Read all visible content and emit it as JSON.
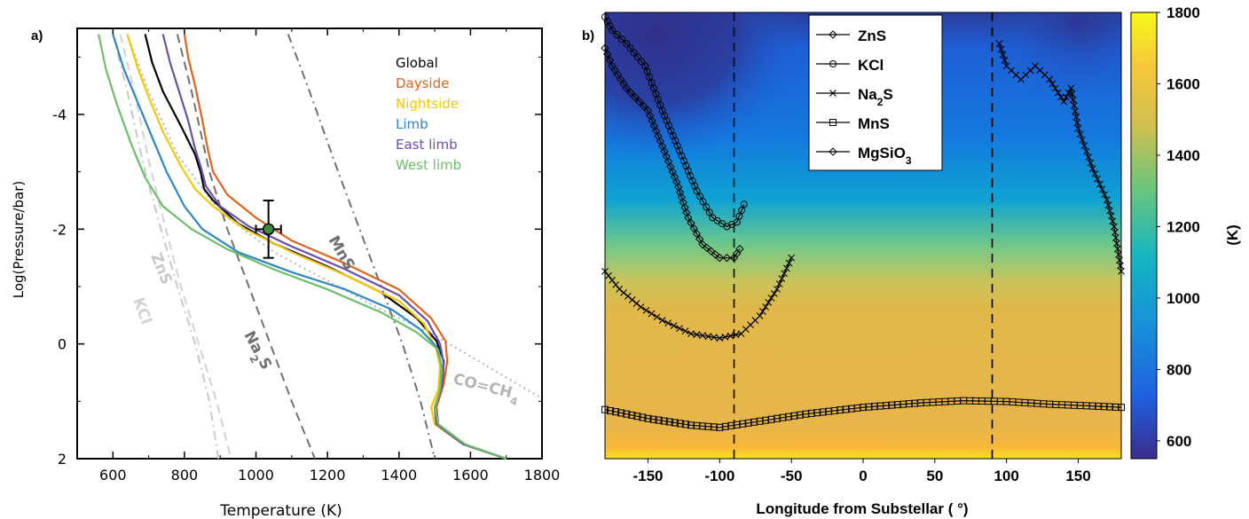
{
  "chart_data": [
    {
      "panel_label": "a)",
      "type": "line",
      "xlabel": "Temperature (K)",
      "ylabel": "Log(Pressure/bar)",
      "xlim": [
        500,
        1800
      ],
      "ylim": [
        2,
        -5.5
      ],
      "xticks": [
        600,
        800,
        1000,
        1200,
        1400,
        1600,
        1800
      ],
      "yticks": [
        -4,
        -2,
        0,
        2
      ],
      "ytick_labels": [
        "-4",
        "-2",
        "0",
        "2"
      ],
      "grid": false,
      "legend_position": "top-right",
      "series": [
        {
          "name": "Global",
          "color": "#000000",
          "points": [
            [
              690,
              -5.4
            ],
            [
              710,
              -4.9
            ],
            [
              740,
              -4.4
            ],
            [
              790,
              -3.8
            ],
            [
              830,
              -3.3
            ],
            [
              845,
              -3.0
            ],
            [
              855,
              -2.7
            ],
            [
              880,
              -2.5
            ],
            [
              950,
              -2.1
            ],
            [
              1050,
              -1.75
            ],
            [
              1200,
              -1.35
            ],
            [
              1350,
              -0.9
            ],
            [
              1450,
              -0.45
            ],
            [
              1505,
              -0.05
            ],
            [
              1525,
              0.3
            ],
            [
              1522,
              0.7
            ],
            [
              1500,
              1.1
            ],
            [
              1505,
              1.4
            ],
            [
              1580,
              1.75
            ],
            [
              1700,
              2.0
            ]
          ]
        },
        {
          "name": "Dayside",
          "color": "#e2631c",
          "points": [
            [
              800,
              -5.4
            ],
            [
              810,
              -5.0
            ],
            [
              830,
              -4.5
            ],
            [
              850,
              -3.9
            ],
            [
              865,
              -3.4
            ],
            [
              880,
              -3.0
            ],
            [
              920,
              -2.6
            ],
            [
              1000,
              -2.2
            ],
            [
              1100,
              -1.8
            ],
            [
              1250,
              -1.4
            ],
            [
              1400,
              -0.95
            ],
            [
              1490,
              -0.45
            ],
            [
              1530,
              -0.05
            ],
            [
              1535,
              0.3
            ],
            [
              1525,
              0.7
            ],
            [
              1505,
              1.1
            ],
            [
              1510,
              1.4
            ],
            [
              1585,
              1.75
            ],
            [
              1700,
              2.0
            ]
          ]
        },
        {
          "name": "Nightside",
          "color": "#f5c800",
          "points": [
            [
              640,
              -5.4
            ],
            [
              670,
              -4.8
            ],
            [
              700,
              -4.3
            ],
            [
              740,
              -3.7
            ],
            [
              790,
              -3.1
            ],
            [
              830,
              -2.7
            ],
            [
              880,
              -2.4
            ],
            [
              970,
              -2.0
            ],
            [
              1100,
              -1.6
            ],
            [
              1250,
              -1.2
            ],
            [
              1400,
              -0.75
            ],
            [
              1470,
              -0.35
            ],
            [
              1505,
              0.1
            ],
            [
              1515,
              0.4
            ],
            [
              1510,
              0.8
            ],
            [
              1490,
              1.1
            ],
            [
              1500,
              1.4
            ],
            [
              1580,
              1.75
            ],
            [
              1700,
              2.0
            ]
          ]
        },
        {
          "name": "Limb",
          "color": "#2e86c9",
          "points": [
            [
              600,
              -5.4
            ],
            [
              630,
              -4.8
            ],
            [
              670,
              -4.2
            ],
            [
              710,
              -3.6
            ],
            [
              750,
              -3.0
            ],
            [
              800,
              -2.4
            ],
            [
              850,
              -2.0
            ],
            [
              950,
              -1.6
            ],
            [
              1100,
              -1.25
            ],
            [
              1250,
              -0.95
            ],
            [
              1380,
              -0.6
            ],
            [
              1460,
              -0.25
            ],
            [
              1505,
              0.05
            ],
            [
              1520,
              0.4
            ],
            [
              1515,
              0.8
            ],
            [
              1500,
              1.1
            ],
            [
              1505,
              1.4
            ],
            [
              1580,
              1.75
            ],
            [
              1700,
              2.0
            ]
          ]
        },
        {
          "name": "East limb",
          "color": "#6a4fa8",
          "points": [
            [
              740,
              -5.4
            ],
            [
              760,
              -4.9
            ],
            [
              785,
              -4.4
            ],
            [
              810,
              -3.9
            ],
            [
              830,
              -3.4
            ],
            [
              845,
              -3.1
            ],
            [
              860,
              -2.75
            ],
            [
              900,
              -2.4
            ],
            [
              980,
              -2.05
            ],
            [
              1100,
              -1.7
            ],
            [
              1250,
              -1.3
            ],
            [
              1400,
              -0.85
            ],
            [
              1480,
              -0.4
            ],
            [
              1515,
              0.0
            ],
            [
              1525,
              0.35
            ],
            [
              1520,
              0.75
            ],
            [
              1500,
              1.1
            ],
            [
              1505,
              1.4
            ],
            [
              1580,
              1.75
            ],
            [
              1700,
              2.0
            ]
          ]
        },
        {
          "name": "West limb",
          "color": "#6cbf6a",
          "points": [
            [
              560,
              -5.4
            ],
            [
              580,
              -4.8
            ],
            [
              610,
              -4.2
            ],
            [
              650,
              -3.5
            ],
            [
              690,
              -2.9
            ],
            [
              740,
              -2.4
            ],
            [
              820,
              -2.0
            ],
            [
              920,
              -1.65
            ],
            [
              1050,
              -1.3
            ],
            [
              1200,
              -0.95
            ],
            [
              1350,
              -0.55
            ],
            [
              1450,
              -0.2
            ],
            [
              1510,
              0.1
            ],
            [
              1520,
              0.45
            ],
            [
              1515,
              0.8
            ],
            [
              1500,
              1.1
            ],
            [
              1510,
              1.4
            ],
            [
              1585,
              1.75
            ],
            [
              1700,
              2.0
            ]
          ]
        }
      ],
      "reference_curves": [
        {
          "label": "ZnS",
          "color": "#c8c8c8",
          "style": "dashdot",
          "points": [
            [
              600,
              -5.4
            ],
            [
              640,
              -4.4
            ],
            [
              690,
              -3.0
            ],
            [
              730,
              -2.1
            ],
            [
              780,
              -1.0
            ],
            [
              830,
              0.0
            ],
            [
              870,
              1.0
            ],
            [
              895,
              2.0
            ]
          ]
        },
        {
          "label": "KCl",
          "color": "#d2d2d2",
          "style": "dash",
          "points": [
            [
              620,
              -5.4
            ],
            [
              660,
              -4.4
            ],
            [
              700,
              -3.2
            ],
            [
              740,
              -2.2
            ],
            [
              790,
              -1.0
            ],
            [
              840,
              0.0
            ],
            [
              890,
              1.0
            ],
            [
              930,
              2.0
            ]
          ]
        },
        {
          "label": "Na2S",
          "label_main": "Na",
          "label_sub": "2",
          "label_tail": "S",
          "color": "#707070",
          "style": "dash",
          "points": [
            [
              780,
              -5.4
            ],
            [
              820,
              -4.4
            ],
            [
              870,
              -3.0
            ],
            [
              920,
              -2.0
            ],
            [
              980,
              -1.0
            ],
            [
              1040,
              0.0
            ],
            [
              1100,
              1.0
            ],
            [
              1165,
              2.0
            ]
          ]
        },
        {
          "label": "MnS",
          "color": "#707070",
          "style": "dashdot",
          "points": [
            [
              1090,
              -5.4
            ],
            [
              1150,
              -4.4
            ],
            [
              1230,
              -3.0
            ],
            [
              1290,
              -2.0
            ],
            [
              1350,
              -1.0
            ],
            [
              1410,
              0.0
            ],
            [
              1460,
              1.0
            ],
            [
              1500,
              2.0
            ]
          ]
        },
        {
          "label": "CO=CH4",
          "label_main": "CO=CH",
          "label_sub": "4",
          "color": "#b4b4b4",
          "style": "dot",
          "points": [
            [
              640,
              -5.4
            ],
            [
              700,
              -4.4
            ],
            [
              780,
              -3.3
            ],
            [
              900,
              -2.3
            ],
            [
              1050,
              -1.6
            ],
            [
              1200,
              -1.1
            ],
            [
              1350,
              -0.6
            ],
            [
              1500,
              -0.15
            ],
            [
              1650,
              0.4
            ],
            [
              1800,
              0.95
            ]
          ]
        }
      ],
      "data_point": {
        "x": 1035,
        "y": -2.0,
        "xerr": 35,
        "yerr_low": 0.5,
        "yerr_high": 0.5,
        "color": "#3d8a3d"
      }
    },
    {
      "panel_label": "b)",
      "type": "heatmap",
      "xlabel": "Longitude from Substellar ( °)",
      "xlim": [
        -180,
        180
      ],
      "xticks": [
        -150,
        -100,
        -50,
        0,
        50,
        100,
        150
      ],
      "colorbar": {
        "label": "(K)",
        "range": [
          550,
          1800
        ],
        "ticks": [
          600,
          800,
          1000,
          1200,
          1400,
          1600,
          1800
        ]
      },
      "vertical_dashed_lines": [
        -90,
        90
      ],
      "legend_position": "top-center",
      "series": [
        {
          "name": "ZnS",
          "marker": "diamond",
          "points": [
            [
              -180,
              0.08
            ],
            [
              -175,
              0.12
            ],
            [
              -165,
              0.17
            ],
            [
              -150,
              0.22
            ],
            [
              -140,
              0.3
            ],
            [
              -130,
              0.38
            ],
            [
              -122,
              0.46
            ],
            [
              -112,
              0.52
            ],
            [
              -100,
              0.55
            ],
            [
              -90,
              0.55
            ],
            [
              -86,
              0.53
            ]
          ]
        },
        {
          "name": "KCl",
          "marker": "circle",
          "points": [
            [
              -180,
              0.01
            ],
            [
              -175,
              0.04
            ],
            [
              -165,
              0.07
            ],
            [
              -152,
              0.12
            ],
            [
              -140,
              0.22
            ],
            [
              -128,
              0.31
            ],
            [
              -116,
              0.4
            ],
            [
              -105,
              0.46
            ],
            [
              -95,
              0.48
            ],
            [
              -88,
              0.47
            ],
            [
              -83,
              0.43
            ]
          ]
        },
        {
          "name": "Na2S",
          "name_main": "Na",
          "name_sub": "2",
          "name_tail": "S",
          "marker": "x",
          "points": [
            [
              -180,
              0.58
            ],
            [
              -170,
              0.62
            ],
            [
              -155,
              0.66
            ],
            [
              -140,
              0.69
            ],
            [
              -120,
              0.72
            ],
            [
              -100,
              0.73
            ],
            [
              -85,
              0.72
            ],
            [
              -72,
              0.68
            ],
            [
              -60,
              0.62
            ],
            [
              -50,
              0.55
            ],
            [
              95,
              0.07
            ],
            [
              100,
              0.12
            ],
            [
              110,
              0.15
            ],
            [
              120,
              0.12
            ],
            [
              130,
              0.15
            ],
            [
              140,
              0.2
            ],
            [
              145,
              0.17
            ],
            [
              150,
              0.26
            ],
            [
              160,
              0.35
            ],
            [
              170,
              0.42
            ],
            [
              175,
              0.48
            ],
            [
              180,
              0.58
            ]
          ]
        },
        {
          "name": "MnS",
          "marker": "square",
          "points": [
            [
              -180,
              0.89
            ],
            [
              -150,
              0.91
            ],
            [
              -120,
              0.925
            ],
            [
              -100,
              0.93
            ],
            [
              -80,
              0.92
            ],
            [
              -40,
              0.9
            ],
            [
              0,
              0.885
            ],
            [
              40,
              0.875
            ],
            [
              70,
              0.87
            ],
            [
              100,
              0.872
            ],
            [
              130,
              0.878
            ],
            [
              160,
              0.882
            ],
            [
              180,
              0.885
            ]
          ]
        },
        {
          "name": "MgSiO3",
          "name_main": "MgSiO",
          "name_sub": "3",
          "name_tail": "",
          "marker": "diamond",
          "points": [
            [
              -180,
              0.995
            ],
            [
              180,
              0.995
            ]
          ]
        }
      ]
    }
  ]
}
